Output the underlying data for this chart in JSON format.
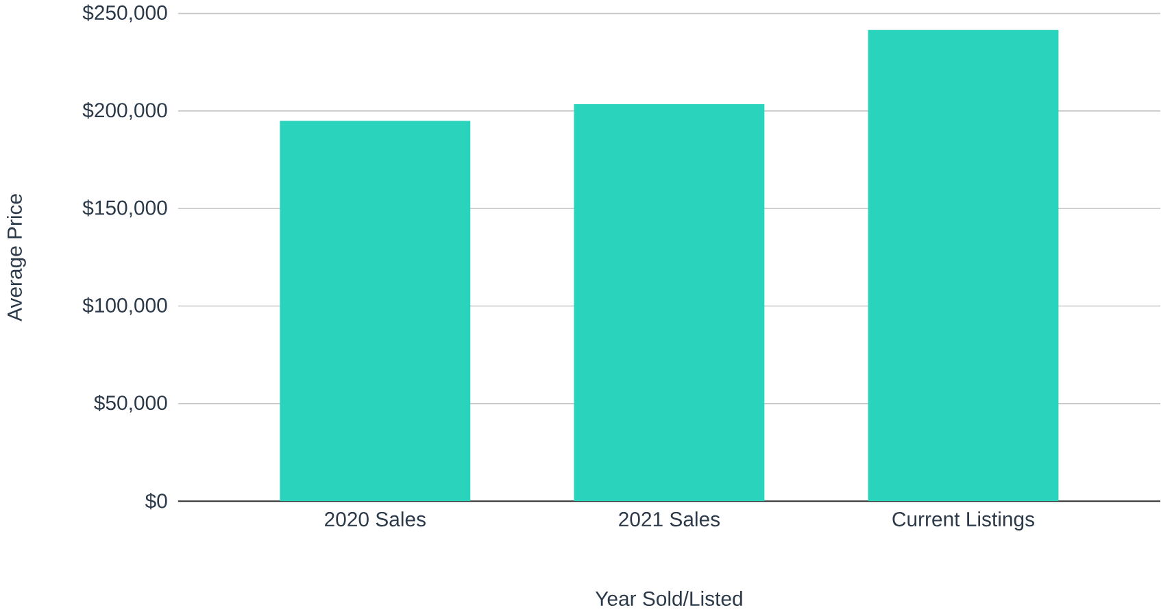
{
  "chart_data": {
    "type": "bar",
    "xlabel": "Year Sold/Listed",
    "ylabel": "Average Price",
    "categories": [
      "2020 Sales",
      "2021 Sales",
      "Current Listings"
    ],
    "values": [
      195000,
      203500,
      241500
    ],
    "color": "#2ad4bc",
    "ylim": [
      0,
      250000
    ],
    "yticks": [
      {
        "value": 0,
        "label": "$0"
      },
      {
        "value": 50000,
        "label": "$50,000"
      },
      {
        "value": 100000,
        "label": "$100,000"
      },
      {
        "value": 150000,
        "label": "$150,000"
      },
      {
        "value": 200000,
        "label": "$200,000"
      },
      {
        "value": 250000,
        "label": "$250,000"
      }
    ],
    "grid": "y"
  }
}
